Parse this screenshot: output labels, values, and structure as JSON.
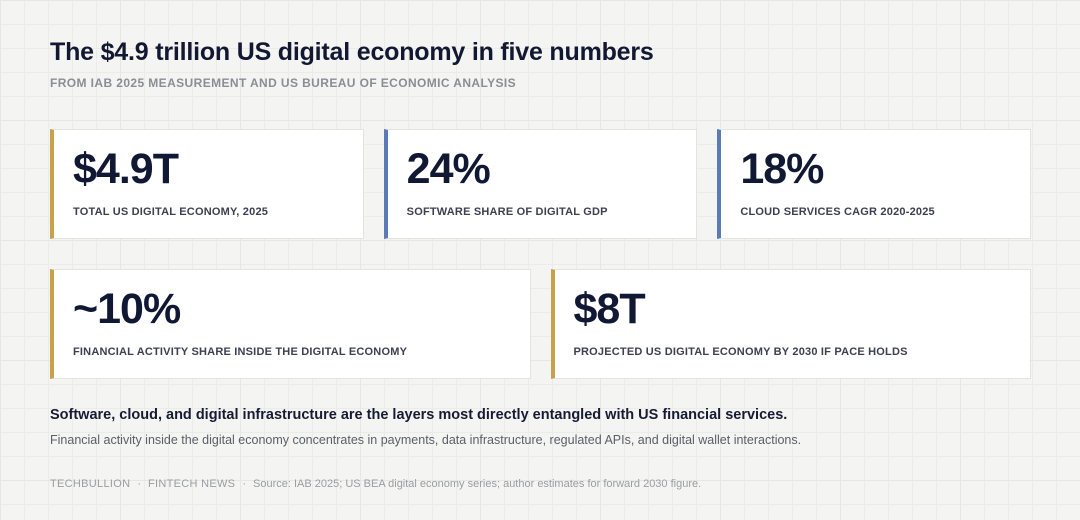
{
  "header": {
    "title": "The $4.9 trillion US digital economy in five numbers",
    "subtitle": "FROM IAB 2025 MEASUREMENT AND US BUREAU OF ECONOMIC ANALYSIS"
  },
  "stats": [
    {
      "value": "$4.9T",
      "label": "TOTAL US DIGITAL ECONOMY, 2025",
      "accent": "#c8a24a"
    },
    {
      "value": "24%",
      "label": "SOFTWARE SHARE OF DIGITAL GDP",
      "accent": "#5b7bb8"
    },
    {
      "value": "18%",
      "label": "CLOUD SERVICES CAGR 2020-2025",
      "accent": "#5b7bb8"
    },
    {
      "value": "~10%",
      "label": "FINANCIAL ACTIVITY SHARE INSIDE THE DIGITAL ECONOMY",
      "accent": "#c8a24a"
    },
    {
      "value": "$8T",
      "label": "PROJECTED US DIGITAL ECONOMY BY 2030 IF PACE HOLDS",
      "accent": "#c8a24a"
    }
  ],
  "notes": {
    "headline": "Software, cloud, and digital infrastructure are the layers most directly entangled with US financial services.",
    "body": "Financial activity inside the digital economy concentrates in payments, data infrastructure, regulated APIs, and digital wallet interactions."
  },
  "footer": {
    "brand": "TECHBULLION",
    "section": "FINTECH NEWS",
    "separator": "·",
    "source": "Source: IAB 2025; US BEA digital economy series; author estimates for forward 2030 figure."
  }
}
